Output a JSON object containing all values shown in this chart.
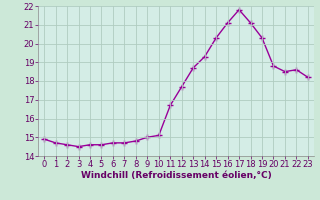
{
  "x": [
    0,
    1,
    2,
    3,
    4,
    5,
    6,
    7,
    8,
    9,
    10,
    11,
    12,
    13,
    14,
    15,
    16,
    17,
    18,
    19,
    20,
    21,
    22,
    23
  ],
  "y": [
    14.9,
    14.7,
    14.6,
    14.5,
    14.6,
    14.6,
    14.7,
    14.7,
    14.8,
    15.0,
    15.1,
    16.7,
    17.7,
    18.7,
    19.3,
    20.3,
    21.1,
    21.8,
    21.1,
    20.3,
    18.8,
    18.5,
    18.6,
    18.2
  ],
  "line_color": "#990099",
  "marker": "+",
  "markersize": 4,
  "markeredgewidth": 1.0,
  "linewidth": 1.0,
  "bg_color": "#cce8d4",
  "grid_color": "#aaccbb",
  "xlabel": "Windchill (Refroidissement éolien,°C)",
  "xlabel_fontsize": 6.5,
  "tick_fontsize": 6.0,
  "ylim": [
    14,
    22
  ],
  "xlim": [
    -0.5,
    23.5
  ],
  "yticks": [
    14,
    15,
    16,
    17,
    18,
    19,
    20,
    21,
    22
  ],
  "xticks": [
    0,
    1,
    2,
    3,
    4,
    5,
    6,
    7,
    8,
    9,
    10,
    11,
    12,
    13,
    14,
    15,
    16,
    17,
    18,
    19,
    20,
    21,
    22,
    23
  ],
  "plot_bg": "#d6f0e8",
  "spine_color": "#888888"
}
